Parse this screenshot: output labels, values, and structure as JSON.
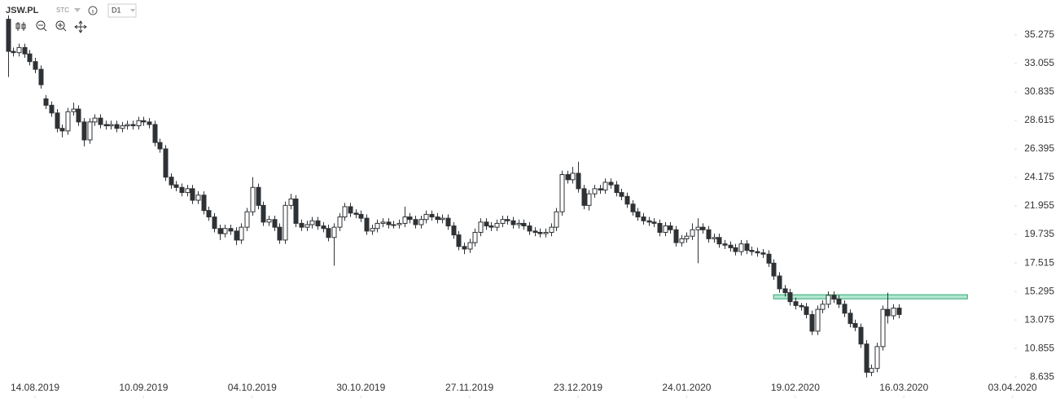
{
  "header": {
    "symbol": "JSW.PL",
    "market": "STC",
    "interval": "D1"
  },
  "chart_data": {
    "type": "candlestick",
    "open": [
      36.5,
      34.0,
      33.9,
      34.3,
      33.8,
      33.2,
      32.6,
      30.3,
      29.8,
      29.2,
      28.0,
      27.8,
      29.3,
      29.5,
      28.5,
      27.1,
      28.5,
      28.8,
      28.3,
      28.2,
      28.3,
      28.0,
      28.2,
      28.3,
      28.2,
      28.6,
      28.5,
      28.3,
      26.9,
      26.4,
      24.2,
      23.6,
      23.4,
      23.0,
      23.3,
      22.4,
      22.8,
      21.6,
      21.1,
      20.2,
      19.8,
      20.2,
      20.0,
      19.3,
      20.3,
      21.5,
      23.4,
      22.0,
      20.7,
      20.9,
      20.3,
      19.3,
      22.0,
      22.5,
      20.6,
      20.3,
      20.5,
      20.8,
      20.4,
      20.2,
      19.5,
      20.3,
      21.1,
      21.9,
      21.4,
      21.3,
      21.0,
      20.0,
      20.2,
      20.6,
      20.7,
      20.5,
      20.5,
      20.6,
      21.1,
      20.9,
      20.5,
      20.9,
      21.3,
      21.1,
      20.9,
      21.0,
      20.4,
      19.7,
      18.8,
      18.6,
      19.1,
      19.9,
      20.7,
      20.4,
      20.3,
      20.6,
      20.9,
      20.8,
      20.5,
      20.6,
      20.4,
      20.0,
      19.9,
      19.8,
      19.9,
      20.3,
      21.5,
      24.4,
      24.0,
      24.5,
      23.3,
      22.0,
      22.9,
      23.3,
      23.2,
      23.8,
      23.6,
      23.0,
      22.7,
      22.1,
      21.5,
      21.1,
      20.8,
      20.7,
      20.6,
      19.9,
      20.4,
      20.1,
      19.1,
      19.4,
      19.6,
      20.1,
      20.3,
      20.1,
      19.4,
      19.5,
      19.0,
      18.9,
      18.7,
      18.4,
      19.0,
      18.5,
      18.4,
      18.3,
      18.2,
      17.5,
      16.5,
      15.5,
      15.2,
      14.5,
      14.2,
      14.1,
      13.5,
      12.2,
      13.9,
      14.3,
      15.0,
      14.7,
      14.3,
      13.6,
      12.8,
      12.5,
      11.2,
      9.0,
      9.3,
      11.0,
      13.9,
      13.4,
      14.0
    ],
    "high": [
      36.8,
      34.3,
      34.6,
      34.6,
      34.1,
      33.5,
      32.9,
      30.6,
      30.1,
      29.5,
      28.3,
      29.6,
      30.0,
      29.8,
      28.8,
      28.8,
      29.1,
      29.1,
      28.6,
      28.6,
      28.6,
      28.5,
      28.6,
      28.6,
      28.9,
      28.9,
      28.8,
      28.6,
      27.2,
      26.7,
      24.5,
      23.9,
      23.7,
      23.6,
      23.6,
      23.1,
      23.1,
      21.9,
      21.4,
      20.5,
      20.5,
      20.5,
      20.3,
      20.6,
      21.8,
      24.2,
      23.7,
      22.3,
      21.2,
      21.2,
      20.6,
      22.3,
      22.9,
      22.8,
      20.9,
      20.8,
      21.1,
      21.1,
      20.7,
      20.5,
      20.6,
      21.4,
      22.2,
      22.2,
      21.7,
      21.6,
      21.3,
      20.5,
      20.9,
      21.0,
      21.0,
      20.8,
      20.9,
      21.9,
      21.4,
      21.2,
      21.2,
      21.6,
      21.6,
      21.4,
      21.3,
      21.3,
      20.7,
      20.0,
      19.1,
      19.4,
      20.2,
      21.0,
      21.0,
      20.7,
      20.9,
      21.2,
      21.2,
      21.1,
      20.9,
      20.9,
      20.7,
      20.3,
      20.2,
      20.2,
      20.6,
      21.8,
      24.7,
      24.7,
      25.0,
      25.4,
      23.6,
      23.2,
      23.6,
      23.6,
      24.1,
      24.1,
      23.9,
      23.3,
      23.0,
      22.4,
      21.8,
      21.4,
      21.1,
      21.0,
      20.9,
      20.7,
      20.7,
      20.4,
      19.7,
      19.9,
      20.6,
      21.0,
      20.6,
      20.4,
      19.8,
      19.8,
      19.3,
      19.2,
      19.0,
      19.3,
      19.3,
      18.8,
      18.7,
      18.6,
      18.5,
      17.8,
      16.8,
      15.8,
      15.5,
      14.8,
      14.4,
      14.4,
      13.8,
      14.2,
      14.6,
      15.3,
      15.3,
      15.0,
      14.6,
      13.9,
      13.1,
      12.8,
      11.5,
      9.6,
      11.3,
      14.2,
      15.2,
      14.3,
      14.3
    ],
    "low": [
      32.0,
      33.6,
      33.6,
      33.5,
      32.9,
      32.3,
      31.1,
      29.5,
      28.9,
      27.7,
      27.3,
      27.5,
      29.0,
      28.2,
      26.6,
      26.8,
      28.2,
      28.0,
      27.9,
      27.9,
      27.7,
      27.7,
      27.9,
      27.9,
      27.9,
      28.2,
      28.0,
      26.6,
      26.1,
      23.9,
      23.3,
      23.1,
      22.7,
      22.7,
      22.1,
      22.1,
      21.3,
      20.8,
      19.9,
      19.3,
      19.5,
      19.7,
      18.9,
      19.0,
      20.0,
      21.2,
      21.7,
      20.4,
      20.4,
      20.0,
      19.0,
      19.0,
      21.7,
      20.3,
      20.0,
      20.0,
      20.2,
      20.1,
      19.9,
      19.2,
      17.3,
      20.0,
      20.8,
      21.1,
      21.0,
      20.7,
      19.7,
      19.7,
      19.9,
      20.3,
      20.2,
      20.2,
      20.2,
      20.3,
      20.6,
      20.2,
      20.2,
      20.6,
      20.8,
      20.6,
      20.6,
      20.1,
      19.4,
      18.5,
      18.2,
      18.3,
      18.8,
      19.6,
      20.1,
      20.0,
      20.0,
      20.3,
      20.5,
      20.2,
      20.2,
      20.1,
      19.7,
      19.6,
      19.5,
      19.5,
      19.6,
      20.0,
      21.2,
      23.7,
      23.7,
      23.0,
      21.7,
      21.6,
      22.6,
      22.9,
      22.9,
      23.3,
      22.7,
      22.4,
      21.8,
      21.2,
      20.8,
      20.5,
      20.4,
      20.3,
      19.6,
      19.6,
      19.8,
      18.8,
      18.8,
      19.1,
      19.3,
      17.5,
      19.8,
      19.1,
      19.1,
      18.7,
      18.6,
      18.4,
      18.1,
      18.1,
      18.2,
      18.1,
      18.0,
      17.9,
      17.2,
      16.2,
      15.2,
      14.9,
      14.2,
      13.9,
      13.8,
      13.2,
      11.9,
      11.9,
      13.6,
      14.0,
      14.4,
      14.0,
      13.3,
      12.5,
      12.2,
      10.9,
      8.6,
      8.7,
      9.0,
      10.7,
      12.8,
      13.1,
      13.2
    ],
    "close": [
      34.0,
      33.9,
      34.3,
      33.8,
      33.2,
      32.6,
      31.4,
      29.8,
      29.2,
      28.0,
      27.8,
      29.3,
      29.5,
      28.5,
      27.1,
      28.5,
      28.8,
      28.3,
      28.2,
      28.3,
      28.0,
      28.2,
      28.3,
      28.2,
      28.6,
      28.5,
      28.3,
      26.9,
      26.4,
      24.2,
      23.6,
      23.4,
      23.0,
      23.3,
      22.4,
      22.8,
      21.6,
      21.1,
      20.2,
      19.8,
      20.2,
      20.0,
      19.3,
      20.3,
      21.5,
      23.4,
      22.0,
      20.7,
      20.9,
      20.3,
      19.3,
      22.0,
      22.5,
      20.6,
      20.3,
      20.5,
      20.8,
      20.4,
      20.2,
      19.5,
      20.3,
      21.1,
      21.9,
      21.4,
      21.3,
      21.0,
      20.0,
      20.2,
      20.6,
      20.7,
      20.5,
      20.5,
      20.6,
      21.1,
      20.9,
      20.5,
      20.9,
      21.3,
      21.1,
      20.9,
      21.0,
      20.4,
      19.7,
      18.8,
      18.6,
      19.1,
      19.9,
      20.7,
      20.4,
      20.3,
      20.6,
      20.9,
      20.8,
      20.5,
      20.6,
      20.4,
      20.0,
      19.9,
      19.8,
      19.9,
      20.3,
      21.5,
      24.4,
      24.0,
      24.5,
      23.3,
      22.0,
      22.9,
      23.3,
      23.2,
      23.8,
      23.6,
      23.0,
      22.7,
      22.1,
      21.5,
      21.1,
      20.8,
      20.7,
      20.6,
      19.9,
      20.4,
      20.1,
      19.1,
      19.4,
      19.6,
      20.1,
      20.3,
      20.1,
      19.4,
      19.5,
      19.0,
      18.9,
      18.7,
      18.4,
      19.0,
      18.5,
      18.4,
      18.3,
      18.2,
      17.5,
      16.5,
      15.5,
      15.2,
      14.5,
      14.2,
      14.1,
      13.5,
      12.2,
      13.9,
      14.3,
      15.0,
      14.7,
      14.3,
      13.6,
      12.8,
      12.5,
      11.2,
      9.0,
      9.3,
      11.0,
      13.9,
      13.4,
      14.0,
      13.5
    ],
    "colors": {
      "up": "#ffffff",
      "down": "#2f3235",
      "outline": "#2f3235"
    },
    "zone": {
      "x": [
        141,
        176.7
      ],
      "y": [
        14.72,
        15.04
      ],
      "color": "#9fe0c4",
      "edge": "#2fa873"
    },
    "xlim": [
      -1.45,
      185.2
    ],
    "ylim": [
      8.2,
      38.0
    ],
    "xticks": [
      {
        "value": 5,
        "label": "14.08.2019"
      },
      {
        "value": 25,
        "label": "10.09.2019"
      },
      {
        "value": 45,
        "label": "04.10.2019"
      },
      {
        "value": 65,
        "label": "30.10.2019"
      },
      {
        "value": 85,
        "label": "27.11.2019"
      },
      {
        "value": 105,
        "label": "23.12.2019"
      },
      {
        "value": 125,
        "label": "24.01.2020"
      },
      {
        "value": 145,
        "label": "19.02.2020"
      },
      {
        "value": 165,
        "label": "16.03.2020"
      },
      {
        "value": 185,
        "label": "03.04.2020"
      }
    ],
    "yticks": [
      35.275,
      33.055,
      30.835,
      28.615,
      26.395,
      24.175,
      21.955,
      19.735,
      17.515,
      15.295,
      13.075,
      10.855,
      8.635
    ]
  }
}
